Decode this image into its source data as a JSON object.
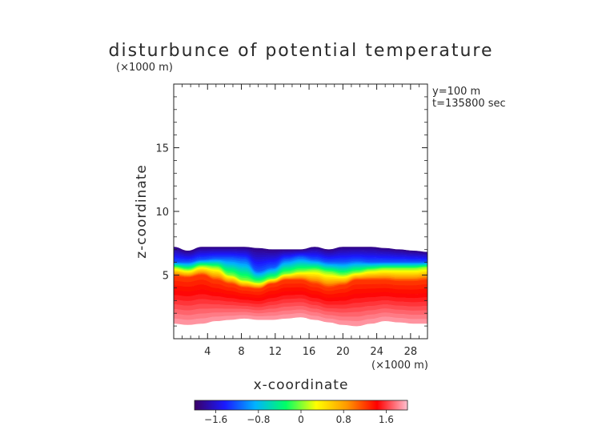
{
  "chart_data": {
    "type": "heatmap",
    "title": "disturbunce of potential temperature",
    "z_unit_label": "(×1000 m)",
    "x_unit_label": "(×1000 m)",
    "xlabel": "x-coordinate",
    "ylabel": "z-coordinate",
    "annotations": [
      "y=100 m",
      "t=135800 sec"
    ],
    "xlim": [
      0,
      30
    ],
    "ylim": [
      0,
      20
    ],
    "x_ticks": [
      4,
      8,
      12,
      16,
      20,
      24,
      28
    ],
    "y_ticks": [
      5,
      10,
      15
    ],
    "colorbar": {
      "range": [
        -2.0,
        2.0
      ],
      "ticks": [
        -1.6,
        -0.8,
        0,
        0.8,
        1.6
      ],
      "tick_labels": [
        "−1.6",
        "−0.8",
        "0",
        "0.8",
        "1.6"
      ],
      "colormap": [
        "#3a0066",
        "#1a1aff",
        "#00b3ff",
        "#00ff66",
        "#ffff00",
        "#ff9900",
        "#ff0000",
        "#ffc0d0"
      ]
    },
    "field_layers": [
      {
        "name": "top_edge",
        "value": -1.9,
        "boundary_z": [
          7.2,
          6.9,
          7.2,
          7.2,
          7.2,
          7.2,
          7.1,
          7.0,
          7.0,
          7.0,
          7.2,
          7.0,
          7.2,
          7.2,
          7.2,
          7.1,
          7.0,
          6.9,
          6.8
        ]
      },
      {
        "name": "cold_core",
        "value": -1.2,
        "boundary_z": [
          6.0,
          6.0,
          6.2,
          6.3,
          6.3,
          6.2,
          5.3,
          5.6,
          6.2,
          6.4,
          6.2,
          6.0,
          6.0,
          6.1,
          6.0,
          6.0,
          6.0,
          6.0,
          6.0
        ]
      },
      {
        "name": "transition",
        "value": 0.0,
        "boundary_z": [
          5.6,
          5.4,
          5.7,
          5.6,
          5.0,
          4.6,
          4.4,
          4.7,
          5.1,
          5.3,
          5.4,
          5.2,
          5.0,
          5.2,
          5.4,
          5.5,
          5.5,
          5.5,
          5.6
        ]
      },
      {
        "name": "warm_core",
        "value": 1.2,
        "boundary_z": [
          4.9,
          4.8,
          5.0,
          4.6,
          4.3,
          4.0,
          3.9,
          4.3,
          4.6,
          4.6,
          4.3,
          4.0,
          4.2,
          4.6,
          4.6,
          4.6,
          4.5,
          4.5,
          4.6
        ]
      },
      {
        "name": "bottom_edge",
        "value": 1.9,
        "boundary_z": [
          1.2,
          1.1,
          1.2,
          1.4,
          1.5,
          1.6,
          1.5,
          1.5,
          1.6,
          1.7,
          1.5,
          1.3,
          1.1,
          1.0,
          1.2,
          1.4,
          1.3,
          1.2,
          1.2
        ]
      }
    ],
    "grid": false
  }
}
